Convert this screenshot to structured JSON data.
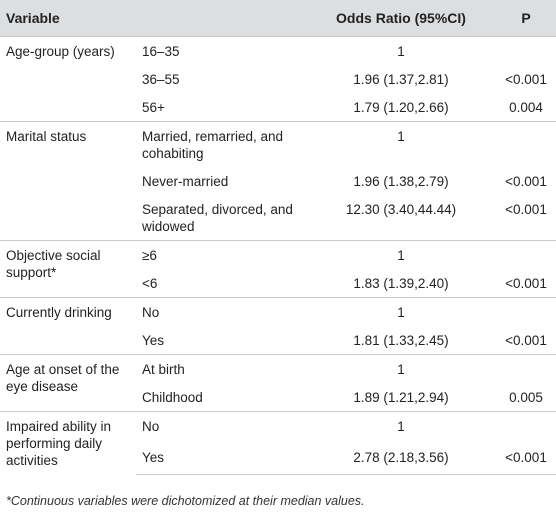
{
  "header": {
    "variable": "Variable",
    "odds_ratio": "Odds Ratio (95%CI)",
    "p": "P"
  },
  "rows": [
    {
      "variable": "Age-group (years)",
      "category": "16–35",
      "or": "1",
      "p": ""
    },
    {
      "variable": "",
      "category": "36–55",
      "or": "1.96 (1.37,2.81)",
      "p": "<0.001"
    },
    {
      "variable": "",
      "category": "56+",
      "or": "1.79 (1.20,2.66)",
      "p": "0.004"
    },
    {
      "variable": "Marital status",
      "category": "Married, remarried, and cohabiting",
      "or": "1",
      "p": ""
    },
    {
      "variable": "",
      "category": "Never-married",
      "or": "1.96 (1.38,2.79)",
      "p": "<0.001"
    },
    {
      "variable": "",
      "category": "Separated, divorced, and widowed",
      "or": "12.30 (3.40,44.44)",
      "p": "<0.001"
    },
    {
      "variable": "Objective social support*",
      "category": "≥6",
      "or": "1",
      "p": ""
    },
    {
      "variable": "",
      "category": "<6",
      "or": "1.83 (1.39,2.40)",
      "p": "<0.001"
    },
    {
      "variable": "Currently drinking",
      "category": "No",
      "or": "1",
      "p": ""
    },
    {
      "variable": "",
      "category": "Yes",
      "or": "1.81 (1.33,2.45)",
      "p": "<0.001"
    },
    {
      "variable": "Age at onset of the eye disease",
      "category": "At birth",
      "or": "1",
      "p": ""
    },
    {
      "variable": "",
      "category": "Childhood",
      "or": "1.89 (1.21,2.94)",
      "p": "0.005"
    },
    {
      "variable": "Impaired ability in performing daily activities",
      "category": "No",
      "or": "1",
      "p": ""
    },
    {
      "variable": "",
      "category": "Yes",
      "or": "2.78 (2.18,3.56)",
      "p": "<0.001"
    }
  ],
  "footnote": "*Continuous variables were dichotomized at their median values."
}
